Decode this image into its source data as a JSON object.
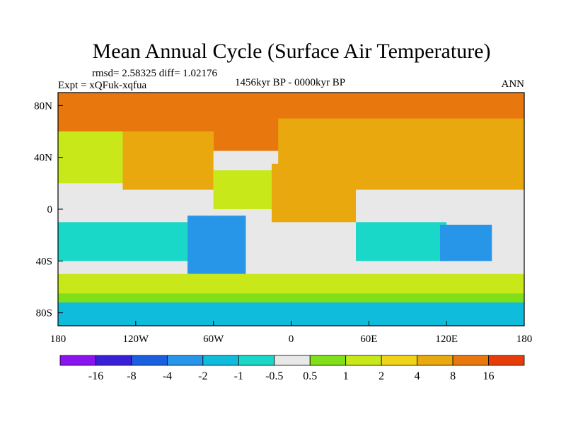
{
  "chart_data": {
    "type": "heatmap",
    "title": "Mean Annual Cycle (Surface Air Temperature)",
    "stats_line": "rmsd= 2.58325 diff= 1.02176",
    "experiment": "Expt = xQFuk-xqfua",
    "period": "1456kyr BP - 0000kyr BP",
    "season": "ANN",
    "x_ticks": [
      {
        "value": -180,
        "label": "180"
      },
      {
        "value": -120,
        "label": "120W"
      },
      {
        "value": -60,
        "label": "60W"
      },
      {
        "value": 0,
        "label": "0"
      },
      {
        "value": 60,
        "label": "60E"
      },
      {
        "value": 120,
        "label": "120E"
      },
      {
        "value": 180,
        "label": "180"
      }
    ],
    "y_ticks": [
      {
        "value": 80,
        "label": "80N"
      },
      {
        "value": 40,
        "label": "40N"
      },
      {
        "value": 0,
        "label": "0"
      },
      {
        "value": -40,
        "label": "40S"
      },
      {
        "value": -80,
        "label": "80S"
      }
    ],
    "xlim": [
      -180,
      180
    ],
    "ylim": [
      -90,
      90
    ],
    "colorbar": {
      "colors": [
        "#8a14f0",
        "#3a1fd8",
        "#1a5fe0",
        "#2896e8",
        "#10bcdc",
        "#1ad8c8",
        "#e8e8e8",
        "#7fe01a",
        "#c8e81a",
        "#f0d41a",
        "#e8a80e",
        "#e8780e",
        "#e63c0a"
      ],
      "labels": [
        "-16",
        "-8",
        "-4",
        "-2",
        "-1",
        "-0.5",
        "0.5",
        "1",
        "2",
        "4",
        "8",
        "16"
      ]
    },
    "regions": [
      {
        "name": "ocean-base",
        "color": "#e8e8e8",
        "lon": [
          -180,
          180
        ],
        "lat": [
          -90,
          90
        ]
      },
      {
        "name": "arctic-warm",
        "color": "#e8780e",
        "lon": [
          -180,
          180
        ],
        "lat": [
          60,
          90
        ]
      },
      {
        "name": "n-atlantic-warm",
        "color": "#e8780e",
        "lon": [
          -60,
          0
        ],
        "lat": [
          45,
          75
        ]
      },
      {
        "name": "eurasia-warm",
        "color": "#e8a80e",
        "lon": [
          -10,
          180
        ],
        "lat": [
          15,
          70
        ]
      },
      {
        "name": "n-america-warm",
        "color": "#e8a80e",
        "lon": [
          -130,
          -60
        ],
        "lat": [
          15,
          60
        ]
      },
      {
        "name": "africa-warm",
        "color": "#e8a80e",
        "lon": [
          -15,
          50
        ],
        "lat": [
          -10,
          35
        ]
      },
      {
        "name": "n-pacific-mild",
        "color": "#c8e81a",
        "lon": [
          -180,
          -130
        ],
        "lat": [
          20,
          60
        ]
      },
      {
        "name": "tropical-atlantic",
        "color": "#c8e81a",
        "lon": [
          -60,
          -15
        ],
        "lat": [
          0,
          30
        ]
      },
      {
        "name": "s-pacific-cool",
        "color": "#1ad8c8",
        "lon": [
          -180,
          -80
        ],
        "lat": [
          -40,
          -10
        ]
      },
      {
        "name": "indian-cool",
        "color": "#1ad8c8",
        "lon": [
          50,
          120
        ],
        "lat": [
          -40,
          -10
        ]
      },
      {
        "name": "s-america-cool",
        "color": "#2896e8",
        "lon": [
          -80,
          -35
        ],
        "lat": [
          -50,
          -5
        ]
      },
      {
        "name": "australia-cool",
        "color": "#2896e8",
        "lon": [
          115,
          155
        ],
        "lat": [
          -40,
          -12
        ]
      },
      {
        "name": "southern-band-warm",
        "color": "#c8e81a",
        "lon": [
          -180,
          180
        ],
        "lat": [
          -65,
          -50
        ]
      },
      {
        "name": "southern-band-green",
        "color": "#7fe01a",
        "lon": [
          -180,
          180
        ],
        "lat": [
          -72,
          -65
        ]
      },
      {
        "name": "antarctic-cool",
        "color": "#10bcdc",
        "lon": [
          -180,
          180
        ],
        "lat": [
          -90,
          -72
        ]
      }
    ]
  }
}
